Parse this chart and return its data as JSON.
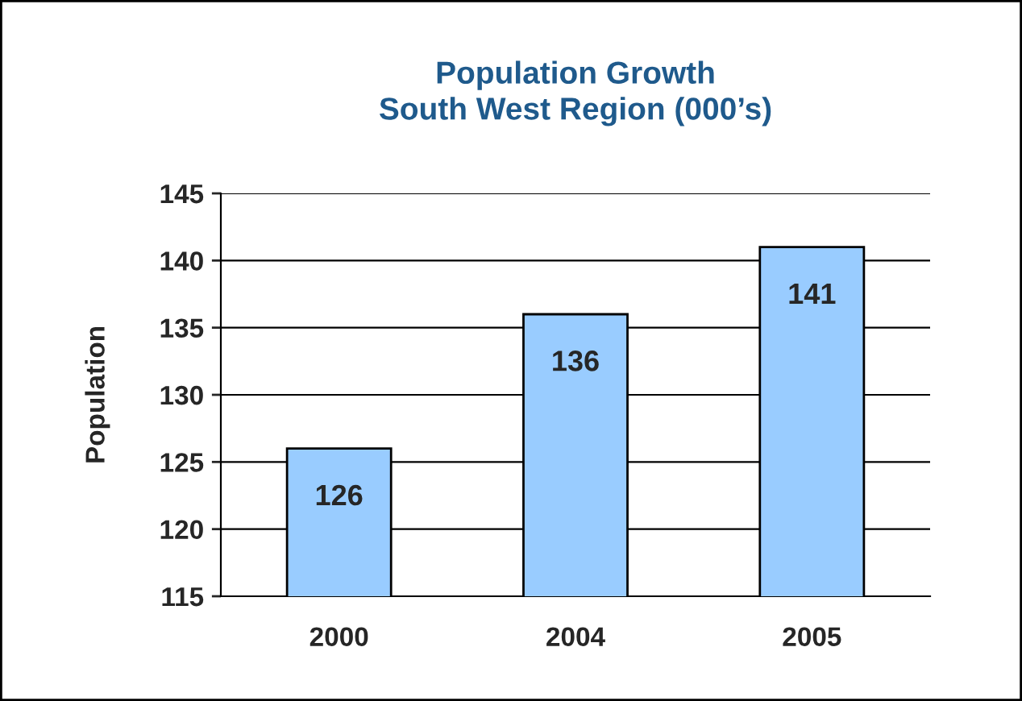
{
  "chart_data": {
    "type": "bar",
    "title": "Population Growth\nSouth West Region (000’s)",
    "ylabel": "Population",
    "categories": [
      "2000",
      "2004",
      "2005"
    ],
    "values": [
      126,
      136,
      141
    ],
    "color": "#99ccff",
    "ylim": [
      115,
      145
    ],
    "yticks": [
      115,
      120,
      125,
      130,
      135,
      140,
      145
    ],
    "grid": "y",
    "data_labels": true
  }
}
